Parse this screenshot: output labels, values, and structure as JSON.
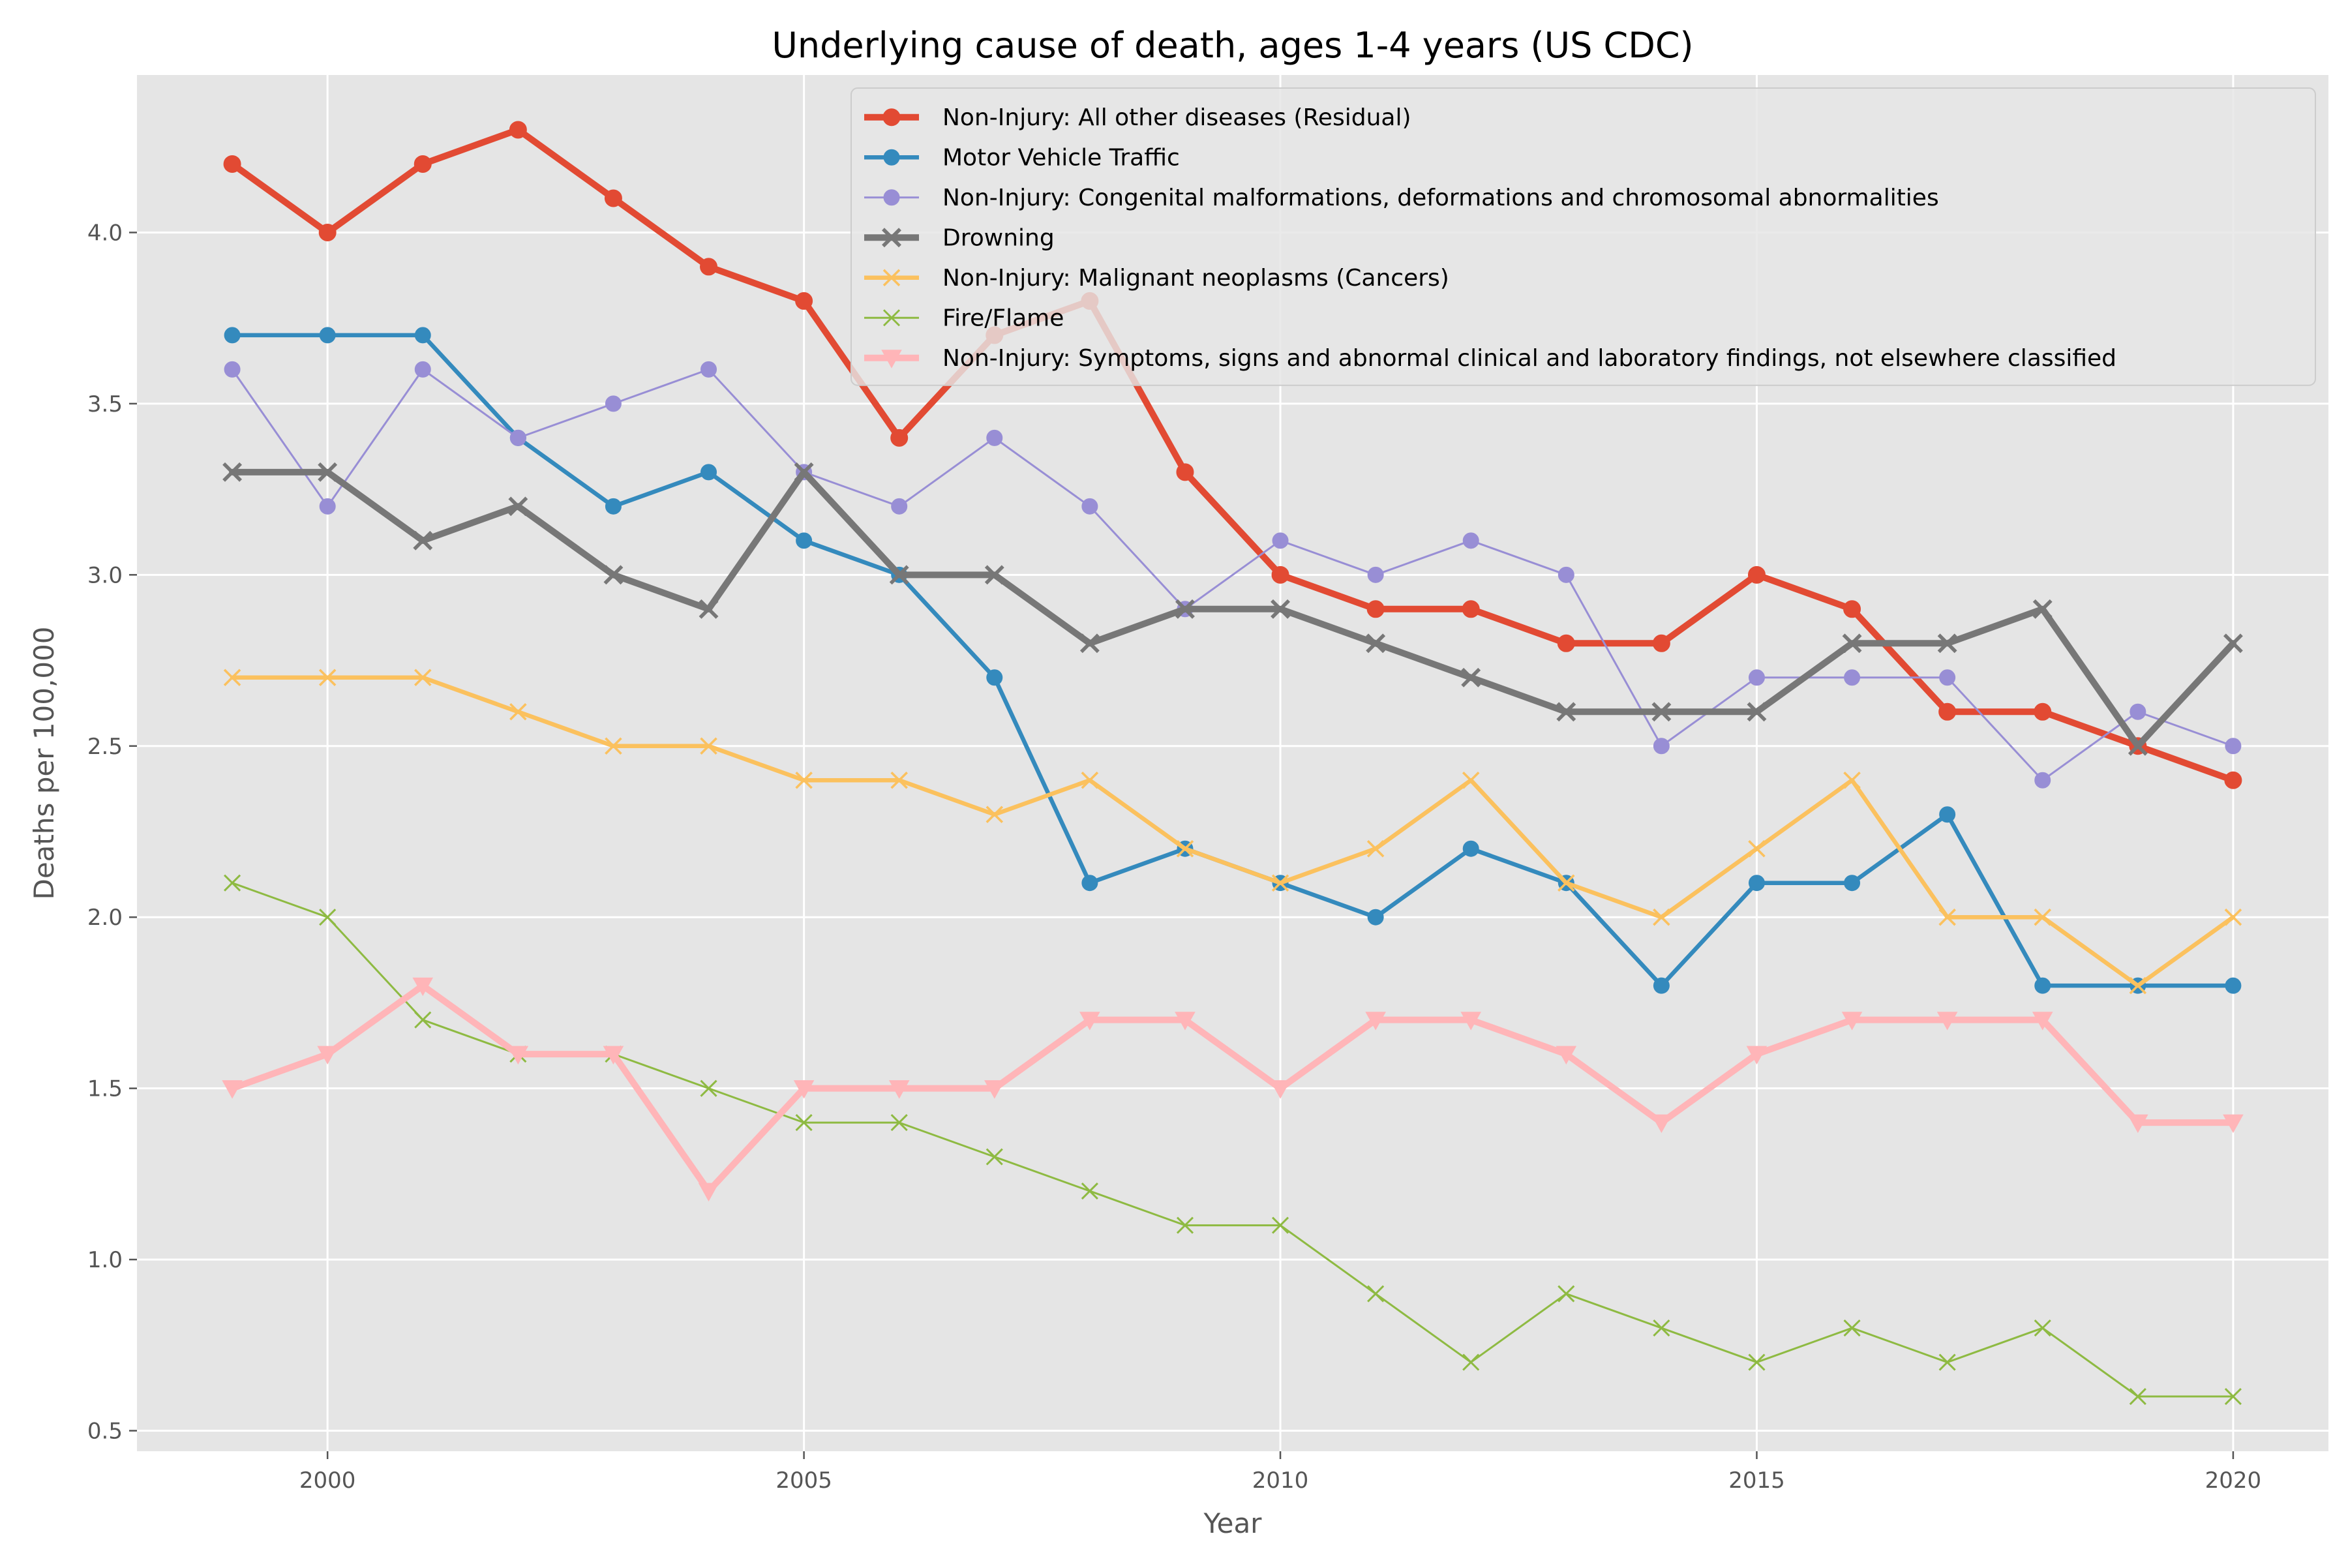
{
  "chart_data": {
    "type": "line",
    "title": "Underlying cause of death, ages 1-4 years (US CDC)",
    "xlabel": "Year",
    "ylabel": "Deaths per 100,000",
    "xlim": [
      1998,
      2021
    ],
    "ylim": [
      0.44,
      4.46
    ],
    "xticks": [
      2000,
      2005,
      2010,
      2015,
      2020
    ],
    "yticks": [
      0.5,
      1.0,
      1.5,
      2.0,
      2.5,
      3.0,
      3.5,
      4.0
    ],
    "ytick_labels": [
      "0.5",
      "1.0",
      "1.5",
      "2.0",
      "2.5",
      "3.0",
      "3.5",
      "4.0"
    ],
    "grid": true,
    "legend_position": "upper-right",
    "x": [
      1999,
      2000,
      2001,
      2002,
      2003,
      2004,
      2005,
      2006,
      2007,
      2008,
      2009,
      2010,
      2011,
      2012,
      2013,
      2014,
      2015,
      2016,
      2017,
      2018,
      2019,
      2020
    ],
    "series": [
      {
        "name": "Non-Injury: All other diseases (Residual)",
        "color": "#E24A33",
        "marker": "circle",
        "linewidth": "thick",
        "values": [
          4.2,
          4.0,
          4.2,
          4.3,
          4.1,
          3.9,
          3.8,
          3.4,
          3.7,
          3.8,
          3.3,
          3.0,
          2.9,
          2.9,
          2.8,
          2.8,
          3.0,
          2.9,
          2.6,
          2.6,
          2.5,
          2.4
        ]
      },
      {
        "name": "Motor Vehicle Traffic",
        "color": "#348ABD",
        "marker": "circle",
        "linewidth": "medium",
        "values": [
          3.7,
          3.7,
          3.7,
          3.4,
          3.2,
          3.3,
          3.1,
          3.0,
          2.7,
          2.1,
          2.2,
          2.1,
          2.0,
          2.2,
          2.1,
          1.8,
          2.1,
          2.1,
          2.3,
          1.8,
          1.8,
          1.8
        ]
      },
      {
        "name": "Non-Injury: Congenital malformations, deformations and chromosomal abnormalities",
        "color": "#988ED5",
        "marker": "circle",
        "linewidth": "thin",
        "values": [
          3.6,
          3.2,
          3.6,
          3.4,
          3.5,
          3.6,
          3.3,
          3.2,
          3.4,
          3.2,
          2.9,
          3.1,
          3.0,
          3.1,
          3.0,
          2.5,
          2.7,
          2.7,
          2.7,
          2.4,
          2.6,
          2.5
        ]
      },
      {
        "name": "Drowning",
        "color": "#777777",
        "marker": "x",
        "linewidth": "thick",
        "values": [
          3.3,
          3.3,
          3.1,
          3.2,
          3.0,
          2.9,
          3.3,
          3.0,
          3.0,
          2.8,
          2.9,
          2.9,
          2.8,
          2.7,
          2.6,
          2.6,
          2.6,
          2.8,
          2.8,
          2.9,
          2.5,
          2.8
        ]
      },
      {
        "name": "Non-Injury: Malignant neoplasms (Cancers)",
        "color": "#FBC15E",
        "marker": "x",
        "linewidth": "medium",
        "values": [
          2.7,
          2.7,
          2.7,
          2.6,
          2.5,
          2.5,
          2.4,
          2.4,
          2.3,
          2.4,
          2.2,
          2.1,
          2.2,
          2.4,
          2.1,
          2.0,
          2.2,
          2.4,
          2.0,
          2.0,
          1.8,
          2.0
        ]
      },
      {
        "name": "Fire/Flame",
        "color": "#8EBA42",
        "marker": "x",
        "linewidth": "thin",
        "values": [
          2.1,
          2.0,
          1.7,
          1.6,
          1.6,
          1.5,
          1.4,
          1.4,
          1.3,
          1.2,
          1.1,
          1.1,
          0.9,
          0.7,
          0.9,
          0.8,
          0.7,
          0.8,
          0.7,
          0.8,
          0.6,
          0.6
        ]
      },
      {
        "name": "Non-Injury: Symptoms, signs and abnormal clinical and laboratory findings, not elsewhere classified",
        "color": "#FFB5B8",
        "marker": "triangle-down",
        "linewidth": "thick",
        "values": [
          1.5,
          1.6,
          1.8,
          1.6,
          1.6,
          1.2,
          1.5,
          1.5,
          1.5,
          1.7,
          1.7,
          1.5,
          1.7,
          1.7,
          1.6,
          1.4,
          1.6,
          1.7,
          1.7,
          1.7,
          1.4,
          1.4
        ]
      }
    ]
  }
}
